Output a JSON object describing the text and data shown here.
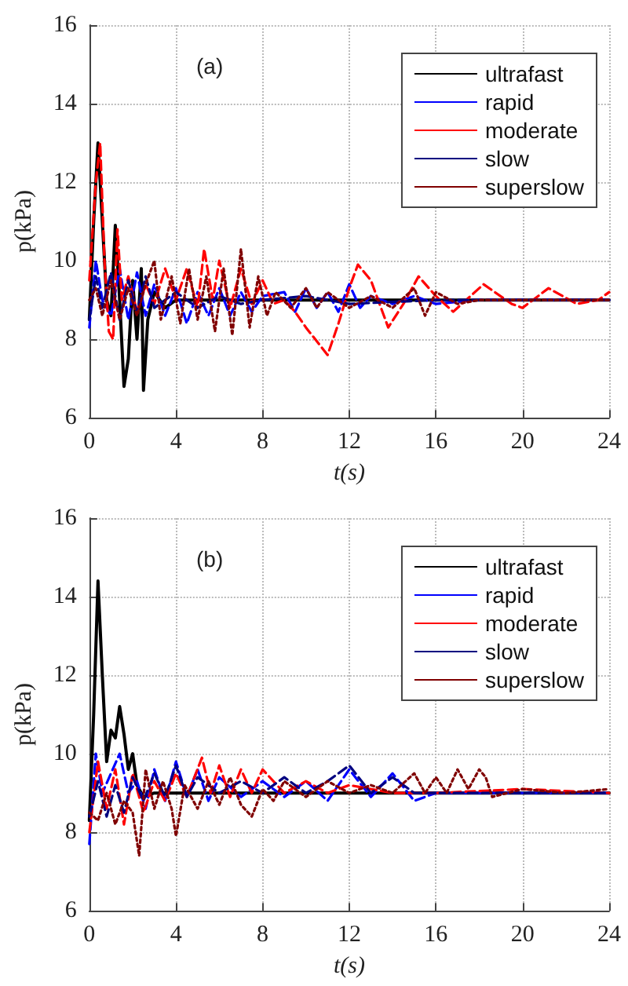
{
  "chart_data": [
    {
      "type": "line",
      "title": "(a)",
      "xlabel": "t(s)",
      "ylabel": "p(kPa)",
      "xlim": [
        0,
        24
      ],
      "xticks": [
        0,
        4,
        8,
        12,
        16,
        20,
        24
      ],
      "ylim": [
        6,
        16
      ],
      "yticks": [
        6,
        8,
        10,
        12,
        14,
        16
      ],
      "grid": true,
      "legend": "top right",
      "marker": "none",
      "series": [
        {
          "name": "ultrafast",
          "color": "#000000",
          "line_style": "solid",
          "x": [
            0,
            0.2,
            0.4,
            0.6,
            0.8,
            1.0,
            1.2,
            1.4,
            1.6,
            1.8,
            2.0,
            2.2,
            2.4,
            2.5,
            2.7,
            3.0,
            3.5,
            4,
            6,
            8,
            12,
            16,
            20,
            24
          ],
          "values": [
            8.5,
            11,
            13,
            11,
            9,
            8.6,
            10.9,
            9,
            6.8,
            7.5,
            9.5,
            8,
            9.8,
            6.7,
            8.5,
            9.2,
            8.8,
            9,
            9,
            9,
            9,
            9,
            9,
            9
          ]
        },
        {
          "name": "rapid",
          "color": "#0000ff",
          "line_style": "dashed",
          "x": [
            0,
            0.3,
            0.6,
            1,
            1.4,
            1.8,
            2.2,
            2.6,
            3,
            3.5,
            4,
            4.5,
            5,
            5.5,
            6,
            6.5,
            7,
            7.5,
            8,
            9,
            9.5,
            10,
            10.5,
            11,
            11.5,
            12,
            12.5,
            13,
            14,
            15,
            16,
            18,
            24
          ],
          "values": [
            8.3,
            10,
            9,
            8.6,
            9.8,
            8.5,
            9.7,
            8.6,
            9.4,
            8.6,
            9.3,
            8.4,
            9.2,
            8.6,
            9.3,
            8.6,
            9.2,
            8.7,
            9.1,
            9.2,
            8.7,
            9.3,
            8.8,
            9.2,
            8.7,
            9.4,
            8.8,
            9.1,
            8.9,
            9.1,
            8.9,
            9.0,
            9
          ]
        },
        {
          "name": "moderate",
          "color": "#ff0000",
          "line_style": "dashed",
          "x": [
            0,
            0.3,
            0.5,
            0.7,
            0.9,
            1.1,
            1.3,
            1.5,
            1.8,
            2.2,
            2.6,
            3,
            3.5,
            4,
            4.5,
            5,
            5.3,
            5.7,
            6,
            6.5,
            7,
            7.5,
            8,
            8.5,
            9,
            9.5,
            10,
            11,
            11.5,
            12,
            12.4,
            13,
            13.8,
            14.5,
            15.2,
            16,
            16.8,
            18.2,
            19.5,
            20,
            21.2,
            22.5,
            23.5,
            24
          ],
          "values": [
            9.5,
            12,
            13,
            10,
            8.2,
            8.0,
            10.8,
            9,
            9.6,
            8.7,
            9.4,
            8.9,
            9.8,
            9.0,
            9.8,
            8.8,
            10.3,
            9,
            10.0,
            8.8,
            9.8,
            8.9,
            9.5,
            8.9,
            9.0,
            8.7,
            8.3,
            7.6,
            8.4,
            9.3,
            9.9,
            9.5,
            8.3,
            8.9,
            9.6,
            9.1,
            8.7,
            9.4,
            8.9,
            8.8,
            9.3,
            8.9,
            9.0,
            9.2
          ]
        },
        {
          "name": "slow",
          "color": "#000080",
          "line_style": "dashed",
          "x": [
            0,
            0.3,
            0.6,
            1,
            1.4,
            1.8,
            2.2,
            2.6,
            3,
            4,
            5,
            6,
            7,
            8,
            10,
            12,
            16,
            24
          ],
          "values": [
            8.5,
            9.6,
            8.8,
            9.7,
            8.5,
            9.5,
            8.7,
            9.6,
            8.8,
            9.2,
            8.8,
            9.1,
            8.9,
            9.0,
            9.1,
            8.9,
            9.0,
            9
          ]
        },
        {
          "name": "superslow",
          "color": "#800000",
          "line_style": "dotted",
          "x": [
            0,
            0.3,
            0.6,
            1,
            1.4,
            1.8,
            2.2,
            2.6,
            3,
            3.3,
            3.8,
            4.2,
            4.6,
            5,
            5.4,
            5.8,
            6.2,
            6.6,
            7,
            7.4,
            7.8,
            8.2,
            8.6,
            9.3,
            10,
            10.5,
            11,
            12,
            13,
            14,
            15,
            15.5,
            16,
            17,
            18,
            24
          ],
          "values": [
            9,
            9.3,
            8.6,
            9.5,
            8.5,
            9.3,
            8.6,
            9.4,
            10,
            8.5,
            9.6,
            8.4,
            9.8,
            8.5,
            9.6,
            8.2,
            9.8,
            8.1,
            10.3,
            8.3,
            9.6,
            8.6,
            9.2,
            8.8,
            9.3,
            8.8,
            9.2,
            8.8,
            9.1,
            8.8,
            9.3,
            8.6,
            9.2,
            8.9,
            9.0,
            9
          ]
        }
      ]
    },
    {
      "type": "line",
      "title": "(b)",
      "xlabel": "t(s)",
      "ylabel": "p(kPa)",
      "xlim": [
        0,
        24
      ],
      "xticks": [
        0,
        4,
        8,
        12,
        16,
        20,
        24
      ],
      "ylim": [
        6,
        16
      ],
      "yticks": [
        6,
        8,
        10,
        12,
        14,
        16
      ],
      "grid": true,
      "legend": "top right",
      "marker": "none",
      "series": [
        {
          "name": "ultrafast",
          "color": "#000000",
          "line_style": "solid",
          "x": [
            0,
            0.2,
            0.4,
            0.6,
            0.8,
            1.0,
            1.2,
            1.4,
            1.6,
            1.8,
            2.0,
            2.2,
            2.5,
            3,
            4,
            24
          ],
          "values": [
            8.3,
            11,
            14.4,
            12,
            9.8,
            10.6,
            10.4,
            11.2,
            10.5,
            9.6,
            10,
            9.2,
            8.9,
            9.0,
            9,
            9
          ]
        },
        {
          "name": "rapid",
          "color": "#0000ff",
          "line_style": "dashed",
          "x": [
            0,
            0.3,
            0.6,
            1,
            1.4,
            1.8,
            2.2,
            2.6,
            3,
            3.5,
            4,
            4.5,
            5,
            5.5,
            6,
            7,
            8,
            9,
            10,
            11,
            12,
            13,
            14,
            15,
            16,
            24
          ],
          "values": [
            7.7,
            10,
            9,
            9.5,
            10,
            9,
            9.3,
            8.6,
            9.6,
            8.8,
            9.8,
            8.9,
            9.6,
            8.8,
            9.4,
            8.9,
            9.3,
            8.9,
            9.3,
            8.8,
            9.6,
            8.9,
            9.5,
            8.8,
            9.0,
            9
          ]
        },
        {
          "name": "moderate",
          "color": "#ff0000",
          "line_style": "dashed",
          "x": [
            0,
            0.4,
            0.8,
            1.2,
            1.6,
            2,
            2.5,
            3,
            3.5,
            4,
            4.5,
            5.2,
            5.6,
            6,
            6.5,
            7,
            7.5,
            8,
            9,
            10,
            11,
            12,
            14,
            16,
            20,
            24
          ],
          "values": [
            8,
            9.8,
            8.6,
            9.6,
            8.2,
            9.5,
            8.5,
            9.3,
            8.8,
            9.5,
            8.9,
            9.9,
            9,
            9.7,
            8.9,
            9.6,
            9.0,
            9.6,
            9.0,
            9.3,
            9.0,
            9.2,
            9.0,
            9.0,
            9.1,
            9
          ]
        },
        {
          "name": "slow",
          "color": "#000080",
          "line_style": "dashed",
          "x": [
            0,
            0.4,
            0.8,
            1.2,
            1.6,
            2,
            2.5,
            3,
            3.5,
            4,
            4.5,
            5,
            6,
            7,
            8,
            9,
            10,
            11,
            12,
            13,
            14,
            15,
            16,
            24
          ],
          "values": [
            8.4,
            9.3,
            8.4,
            9.2,
            8.5,
            9.4,
            8.8,
            9.5,
            8.9,
            9.7,
            8.9,
            9.4,
            9.0,
            9.3,
            9.0,
            9.4,
            9.0,
            9.3,
            9.7,
            9.0,
            9.4,
            9.0,
            9.0,
            9
          ]
        },
        {
          "name": "superslow",
          "color": "#800000",
          "line_style": "dotted",
          "x": [
            0,
            0.4,
            0.8,
            1.2,
            1.6,
            2,
            2.3,
            2.6,
            3,
            3.4,
            3.8,
            4,
            4.4,
            5,
            5.5,
            6,
            6.5,
            7,
            7.5,
            8,
            8.5,
            9,
            10,
            11,
            12,
            13,
            14,
            15,
            15.5,
            16,
            16.5,
            17,
            17.5,
            18,
            18.3,
            18.6,
            20,
            22,
            24
          ],
          "values": [
            8.5,
            8.3,
            9.0,
            8.2,
            8.8,
            8.5,
            7.4,
            9.6,
            8.6,
            9.3,
            8.6,
            7.9,
            9.2,
            8.6,
            9.3,
            8.7,
            9.4,
            8.7,
            8.4,
            9.1,
            8.8,
            9.3,
            8.9,
            9.3,
            9.0,
            9.2,
            9.0,
            9.5,
            9.0,
            9.4,
            9.0,
            9.6,
            9.1,
            9.6,
            9.4,
            8.9,
            9.1,
            9.0,
            9.1
          ]
        }
      ]
    }
  ]
}
